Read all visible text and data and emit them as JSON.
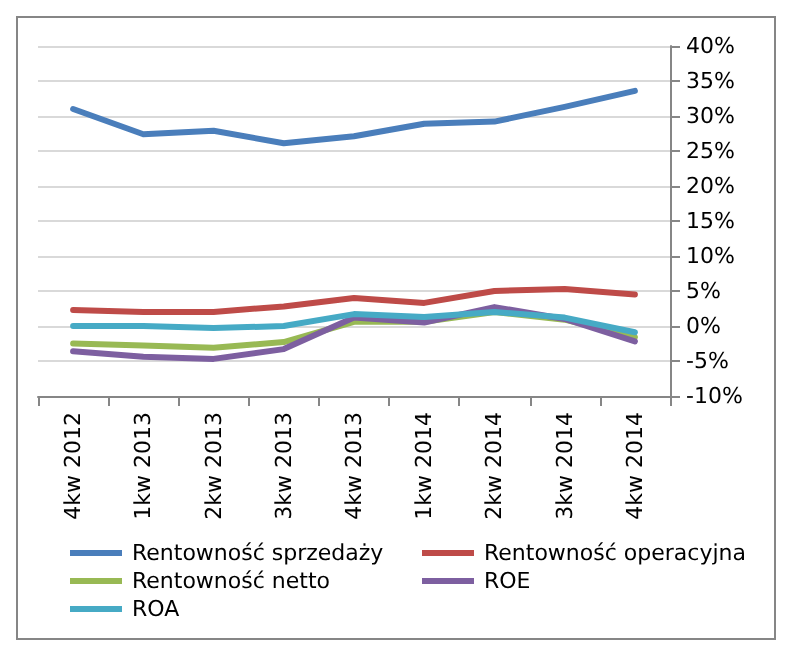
{
  "chart_data": {
    "type": "line",
    "categories": [
      "4kw 2012",
      "1kw 2013",
      "2kw 2013",
      "3kw 2013",
      "4kw 2013",
      "1kw 2014",
      "2kw 2014",
      "3kw 2014",
      "4kw 2014"
    ],
    "series": [
      {
        "name": "Rentowność sprzedaży",
        "color": "#4a7ebb",
        "values": [
          31.0,
          27.4,
          27.9,
          26.1,
          27.1,
          28.9,
          29.2,
          31.3,
          33.6
        ]
      },
      {
        "name": "Rentowność operacyjna",
        "color": "#be4b48",
        "values": [
          2.3,
          2.0,
          2.0,
          2.8,
          4.0,
          3.3,
          5.0,
          5.3,
          4.5
        ]
      },
      {
        "name": "Rentowność netto",
        "color": "#98b954",
        "values": [
          -2.5,
          -2.8,
          -3.1,
          -2.3,
          0.6,
          0.6,
          2.0,
          0.9,
          -1.6
        ]
      },
      {
        "name": "ROE",
        "color": "#7d5fa0",
        "values": [
          -3.6,
          -4.4,
          -4.7,
          -3.3,
          1.2,
          0.5,
          2.7,
          1.0,
          -2.2
        ]
      },
      {
        "name": "ROA",
        "color": "#46aac5",
        "values": [
          0.0,
          0.0,
          -0.3,
          0.0,
          1.7,
          1.3,
          2.0,
          1.2,
          -0.9
        ]
      }
    ],
    "ylim": [
      -10,
      40
    ],
    "yticks": [
      {
        "value": -10,
        "label": "-10%"
      },
      {
        "value": -5,
        "label": "-5%"
      },
      {
        "value": 0,
        "label": "0%"
      },
      {
        "value": 5,
        "label": "5%"
      },
      {
        "value": 10,
        "label": "10%"
      },
      {
        "value": 15,
        "label": "15%"
      },
      {
        "value": 20,
        "label": "20%"
      },
      {
        "value": 25,
        "label": "25%"
      },
      {
        "value": 30,
        "label": "30%"
      },
      {
        "value": 35,
        "label": "35%"
      },
      {
        "value": 40,
        "label": "40%"
      }
    ],
    "grid": "y",
    "legend": "bottom",
    "marker": "none",
    "line_style": "solid"
  }
}
